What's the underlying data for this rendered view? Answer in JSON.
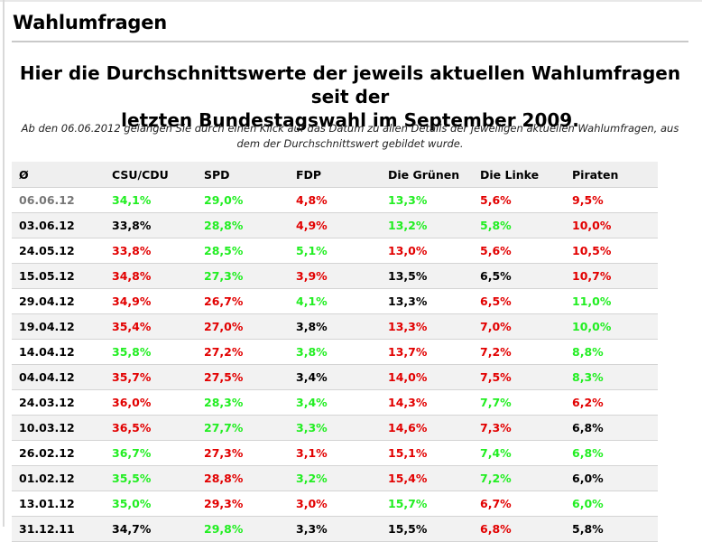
{
  "section": {
    "title": "Wahlumfragen"
  },
  "headline": {
    "line1": "Hier die Durchschnittswerte der jeweils aktuellen Wahlumfragen seit der",
    "line2": "letzten Bundestagswahl im September 2009."
  },
  "intro": {
    "line1": "Ab den 06.06.2012 gelangen Sie durch einen Klick auf das Datum zu allen Details der jeweiligen aktuellen Wahlumfragen, aus",
    "line2": "dem der Durchschnittswert gebildet wurde."
  },
  "colors": {
    "red": "#e20000",
    "green": "#22ee22",
    "black": "#000000",
    "gray": "#777777"
  },
  "table": {
    "headers": [
      "Ø",
      "CSU/CDU",
      "SPD",
      "FDP",
      "Die Grünen",
      "Die Linke",
      "Piraten"
    ],
    "rows": [
      {
        "date": "06.06.12",
        "date_color": "gray",
        "values": [
          [
            "34,1%",
            "green"
          ],
          [
            "29,0%",
            "green"
          ],
          [
            "4,8%",
            "red"
          ],
          [
            "13,3%",
            "green"
          ],
          [
            "5,6%",
            "red"
          ],
          [
            "9,5%",
            "red"
          ]
        ]
      },
      {
        "date": "03.06.12",
        "date_color": "black",
        "values": [
          [
            "33,8%",
            "black"
          ],
          [
            "28,8%",
            "green"
          ],
          [
            "4,9%",
            "red"
          ],
          [
            "13,2%",
            "green"
          ],
          [
            "5,8%",
            "green"
          ],
          [
            "10,0%",
            "red"
          ]
        ]
      },
      {
        "date": "24.05.12",
        "date_color": "black",
        "values": [
          [
            "33,8%",
            "red"
          ],
          [
            "28,5%",
            "green"
          ],
          [
            "5,1%",
            "green"
          ],
          [
            "13,0%",
            "red"
          ],
          [
            "5,6%",
            "red"
          ],
          [
            "10,5%",
            "red"
          ]
        ]
      },
      {
        "date": "15.05.12",
        "date_color": "black",
        "values": [
          [
            "34,8%",
            "red"
          ],
          [
            "27,3%",
            "green"
          ],
          [
            "3,9%",
            "red"
          ],
          [
            "13,5%",
            "black"
          ],
          [
            "6,5%",
            "black"
          ],
          [
            "10,7%",
            "red"
          ]
        ]
      },
      {
        "date": "29.04.12",
        "date_color": "black",
        "values": [
          [
            "34,9%",
            "red"
          ],
          [
            "26,7%",
            "red"
          ],
          [
            "4,1%",
            "green"
          ],
          [
            "13,3%",
            "black"
          ],
          [
            "6,5%",
            "red"
          ],
          [
            "11,0%",
            "green"
          ]
        ]
      },
      {
        "date": "19.04.12",
        "date_color": "black",
        "values": [
          [
            "35,4%",
            "red"
          ],
          [
            "27,0%",
            "red"
          ],
          [
            "3,8%",
            "black"
          ],
          [
            "13,3%",
            "red"
          ],
          [
            "7,0%",
            "red"
          ],
          [
            "10,0%",
            "green"
          ]
        ]
      },
      {
        "date": "14.04.12",
        "date_color": "black",
        "values": [
          [
            "35,8%",
            "green"
          ],
          [
            "27,2%",
            "red"
          ],
          [
            "3,8%",
            "green"
          ],
          [
            "13,7%",
            "red"
          ],
          [
            "7,2%",
            "red"
          ],
          [
            "8,8%",
            "green"
          ]
        ]
      },
      {
        "date": "04.04.12",
        "date_color": "black",
        "values": [
          [
            "35,7%",
            "red"
          ],
          [
            "27,5%",
            "red"
          ],
          [
            "3,4%",
            "black"
          ],
          [
            "14,0%",
            "red"
          ],
          [
            "7,5%",
            "red"
          ],
          [
            "8,3%",
            "green"
          ]
        ]
      },
      {
        "date": "24.03.12",
        "date_color": "black",
        "values": [
          [
            "36,0%",
            "red"
          ],
          [
            "28,3%",
            "green"
          ],
          [
            "3,4%",
            "green"
          ],
          [
            "14,3%",
            "red"
          ],
          [
            "7,7%",
            "green"
          ],
          [
            "6,2%",
            "red"
          ]
        ]
      },
      {
        "date": "10.03.12",
        "date_color": "black",
        "values": [
          [
            "36,5%",
            "red"
          ],
          [
            "27,7%",
            "green"
          ],
          [
            "3,3%",
            "green"
          ],
          [
            "14,6%",
            "red"
          ],
          [
            "7,3%",
            "red"
          ],
          [
            "6,8%",
            "black"
          ]
        ]
      },
      {
        "date": "26.02.12",
        "date_color": "black",
        "values": [
          [
            "36,7%",
            "green"
          ],
          [
            "27,3%",
            "red"
          ],
          [
            "3,1%",
            "red"
          ],
          [
            "15,1%",
            "red"
          ],
          [
            "7,4%",
            "green"
          ],
          [
            "6,8%",
            "green"
          ]
        ]
      },
      {
        "date": "01.02.12",
        "date_color": "black",
        "values": [
          [
            "35,5%",
            "green"
          ],
          [
            "28,8%",
            "red"
          ],
          [
            "3,2%",
            "green"
          ],
          [
            "15,4%",
            "red"
          ],
          [
            "7,2%",
            "green"
          ],
          [
            "6,0%",
            "black"
          ]
        ]
      },
      {
        "date": "13.01.12",
        "date_color": "black",
        "values": [
          [
            "35,0%",
            "green"
          ],
          [
            "29,3%",
            "red"
          ],
          [
            "3,0%",
            "red"
          ],
          [
            "15,7%",
            "green"
          ],
          [
            "6,7%",
            "red"
          ],
          [
            "6,0%",
            "green"
          ]
        ]
      },
      {
        "date": "31.12.11",
        "date_color": "black",
        "values": [
          [
            "34,7%",
            "black"
          ],
          [
            "29,8%",
            "green"
          ],
          [
            "3,3%",
            "black"
          ],
          [
            "15,5%",
            "black"
          ],
          [
            "6,8%",
            "red"
          ],
          [
            "5,8%",
            "black"
          ]
        ]
      }
    ]
  }
}
